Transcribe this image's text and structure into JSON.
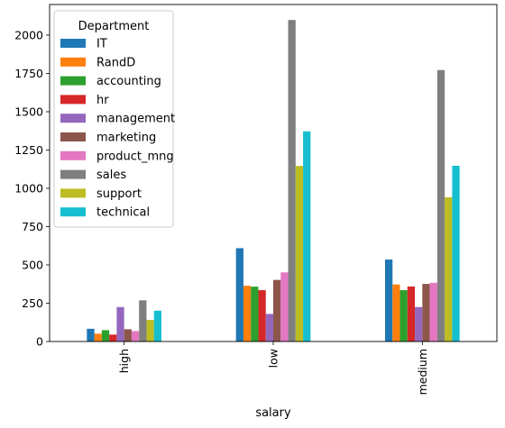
{
  "chart_data": {
    "type": "bar",
    "xlabel": "salary",
    "ylabel": "",
    "categories": [
      "high",
      "low",
      "medium"
    ],
    "ylim": [
      0,
      2200
    ],
    "yticks": [
      0,
      250,
      500,
      750,
      1000,
      1250,
      1500,
      1750,
      2000
    ],
    "grid": false,
    "legend": {
      "title": "Department",
      "placement": "top-left"
    },
    "series": [
      {
        "name": "IT",
        "color": "#1f77b4",
        "values": [
          83,
          609,
          535
        ]
      },
      {
        "name": "RandD",
        "color": "#ff7f0e",
        "values": [
          51,
          364,
          372
        ]
      },
      {
        "name": "accounting",
        "color": "#2ca02c",
        "values": [
          74,
          358,
          335
        ]
      },
      {
        "name": "hr",
        "color": "#d62728",
        "values": [
          45,
          335,
          359
        ]
      },
      {
        "name": "management",
        "color": "#9467bd",
        "values": [
          225,
          180,
          225
        ]
      },
      {
        "name": "marketing",
        "color": "#8c564b",
        "values": [
          80,
          402,
          376
        ]
      },
      {
        "name": "product_mng",
        "color": "#e377c2",
        "values": [
          68,
          451,
          383
        ]
      },
      {
        "name": "sales",
        "color": "#7f7f7f",
        "values": [
          269,
          2099,
          1772
        ]
      },
      {
        "name": "support",
        "color": "#bcbd22",
        "values": [
          141,
          1146,
          942
        ]
      },
      {
        "name": "technical",
        "color": "#17becf",
        "values": [
          201,
          1372,
          1147
        ]
      }
    ]
  }
}
